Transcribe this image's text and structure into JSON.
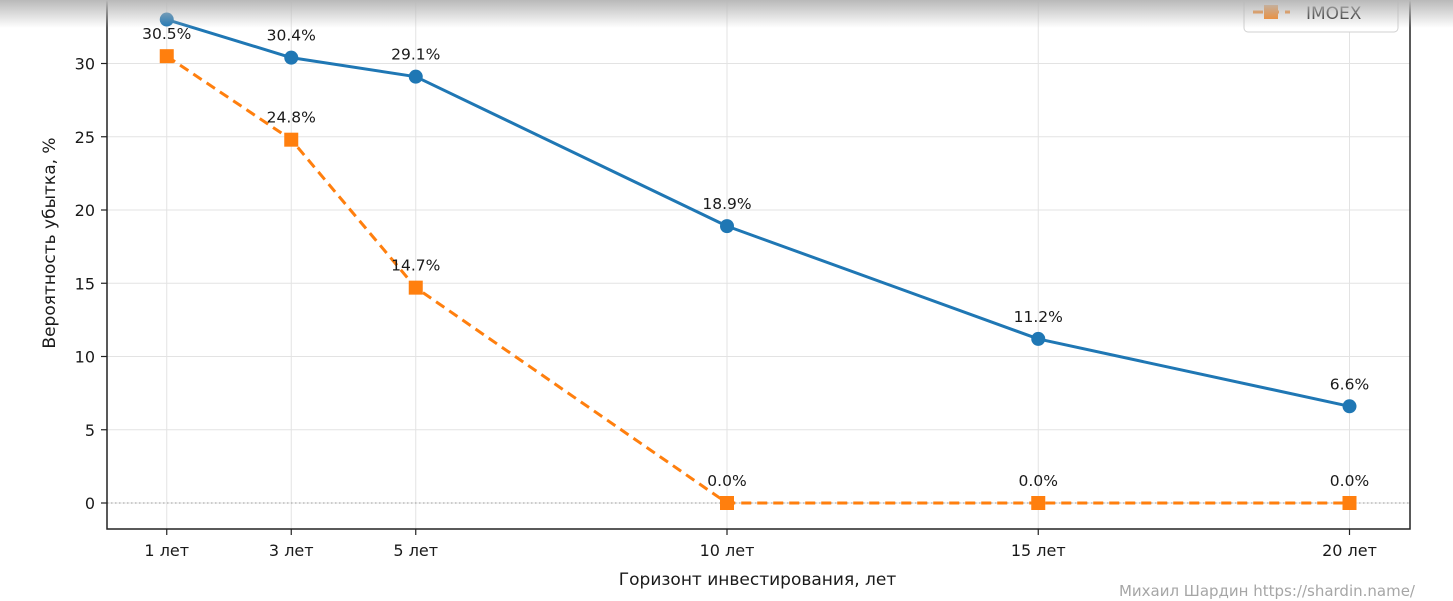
{
  "chart_data": {
    "type": "line",
    "categories": [
      "1 лет",
      "3 лет",
      "5 лет",
      "10 лет",
      "15 лет",
      "20 лет"
    ],
    "x": [
      1,
      3,
      5,
      10,
      15,
      20
    ],
    "series": [
      {
        "values": [
          33.0,
          30.4,
          29.1,
          18.9,
          11.2,
          6.6
        ],
        "labels": [
          "",
          "30.4%",
          "29.1%",
          "18.9%",
          "11.2%",
          "6.6%"
        ],
        "color": "#1f77b4",
        "marker": "circle",
        "line_style": "solid"
      },
      {
        "name": "IMOEX",
        "values": [
          30.5,
          24.8,
          14.7,
          0.0,
          0.0,
          0.0
        ],
        "labels": [
          "30.5%",
          "24.8%",
          "14.7%",
          "0.0%",
          "0.0%",
          "0.0%"
        ],
        "color": "#ff7f0e",
        "marker": "square",
        "line_style": "dashed"
      }
    ],
    "xlabel": "Горизонт инвестирования, лет",
    "ylabel": "Вероятность убытка, %",
    "yticks": [
      "0",
      "5",
      "10",
      "15",
      "20",
      "25",
      "30"
    ],
    "ylim": [
      -1.8,
      33.6
    ],
    "xlim": [
      0,
      21
    ],
    "grid": true,
    "zero_line": "dotted",
    "legend_position": "top-right"
  },
  "watermark": "Михаил Шардин https://shardin.name/"
}
